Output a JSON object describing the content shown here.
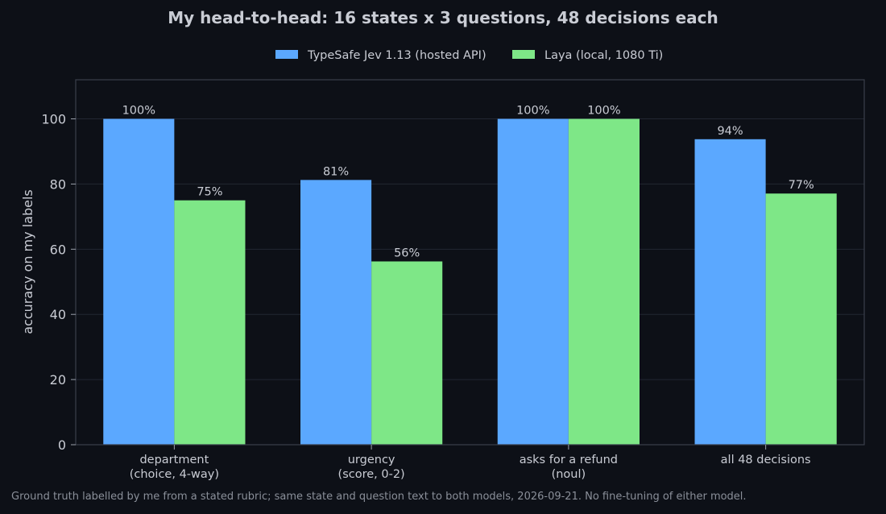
{
  "chart_data": {
    "type": "bar",
    "title": "My head-to-head: 16 states x 3 questions, 48 decisions each",
    "ylabel": "accuracy on my labels",
    "xlabel": "",
    "ylim": [
      0,
      112
    ],
    "yticks": [
      0,
      20,
      40,
      60,
      80,
      100
    ],
    "grid": true,
    "legend_position": "top-center",
    "categories": [
      [
        "department",
        "(choice, 4-way)"
      ],
      [
        "urgency",
        "(score, 0-2)"
      ],
      [
        "asks for a refund",
        "(noul)"
      ],
      [
        "all 48 decisions"
      ]
    ],
    "series": [
      {
        "name": "TypeSafe Jev 1.13 (hosted API)",
        "color": "#5ba8ff",
        "values": [
          100,
          81.25,
          100,
          93.75
        ],
        "labels": [
          "100%",
          "81%",
          "100%",
          "94%"
        ]
      },
      {
        "name": "Laya (local, 1080 Ti)",
        "color": "#7ee787",
        "values": [
          75,
          56.25,
          100,
          77.08
        ],
        "labels": [
          "75%",
          "56%",
          "100%",
          "77%"
        ]
      }
    ],
    "footnote": "Ground truth labelled by me from a stated rubric; same state and question text to both models, 2026-09-21. No fine-tuning of either model."
  }
}
